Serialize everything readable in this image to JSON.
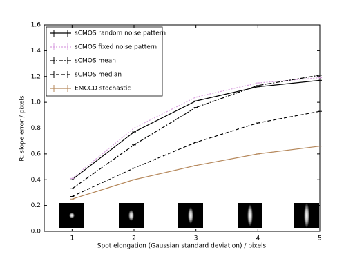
{
  "chart_data": {
    "type": "line",
    "xlabel": "Spot elongation (Gaussian standard deviation) / pixels",
    "ylabel": "R: slope error / pixels",
    "x": [
      1,
      2,
      3,
      4,
      5
    ],
    "xlim": [
      0.55,
      5
    ],
    "xticks": [
      1,
      2,
      3,
      4,
      5
    ],
    "ylim": [
      0,
      1.6
    ],
    "yticks": [
      {
        "value": 0,
        "label": "0.0"
      },
      0.2,
      0.4,
      0.6,
      0.8,
      {
        "value": 1,
        "label": "1.0"
      },
      1.2,
      1.4,
      1.6
    ],
    "legend": "upper left",
    "series": [
      {
        "name": "sCMOS random noise pattern",
        "color": "#000000",
        "dash": "solid",
        "values": [
          0.4,
          0.77,
          1.01,
          1.12,
          1.17
        ]
      },
      {
        "name": "sCMOS fixed noise pattern",
        "color": "#d9a0e0",
        "dash": "dotted",
        "values": [
          0.41,
          0.8,
          1.04,
          1.15,
          1.19
        ]
      },
      {
        "name": "sCMOS mean",
        "color": "#000000",
        "dash": "dashdot",
        "values": [
          0.33,
          0.67,
          0.96,
          1.13,
          1.21
        ]
      },
      {
        "name": "sCMOS median",
        "color": "#000000",
        "dash": "dashed",
        "values": [
          0.27,
          0.49,
          0.69,
          0.84,
          0.93
        ]
      },
      {
        "name": "EMCCD stochastic",
        "color": "#b5875a",
        "dash": "solid",
        "values": [
          0.25,
          0.4,
          0.51,
          0.6,
          0.66
        ]
      }
    ]
  }
}
